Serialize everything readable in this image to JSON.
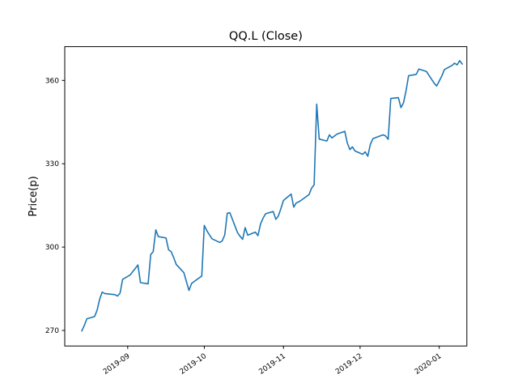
{
  "figure": {
    "title": "QQ.L (Close)",
    "ylabel": "Price(p)"
  },
  "chart_data": {
    "type": "line",
    "title": "QQ.L (Close)",
    "xlabel": "",
    "ylabel": "Price(p)",
    "series_name": "QQ.L Close",
    "line_color": "#1f77b4",
    "grid": false,
    "legend": false,
    "x_tick_labels": [
      "2019-09",
      "2019-10",
      "2019-11",
      "2019-12",
      "2020-01"
    ],
    "x_tick_dates": [
      "2019-09-01",
      "2019-10-01",
      "2019-11-01",
      "2019-12-01",
      "2020-01-01"
    ],
    "y_ticks": [
      270,
      300,
      330,
      360
    ],
    "ylim": [
      264.5,
      372.0
    ],
    "xlim": [
      "2019-08-07",
      "2020-01-14"
    ],
    "dates": [
      "2019-08-14",
      "2019-08-15",
      "2019-08-16",
      "2019-08-19",
      "2019-08-20",
      "2019-08-21",
      "2019-08-22",
      "2019-08-23",
      "2019-08-27",
      "2019-08-28",
      "2019-08-29",
      "2019-08-30",
      "2019-09-02",
      "2019-09-03",
      "2019-09-04",
      "2019-09-05",
      "2019-09-06",
      "2019-09-09",
      "2019-09-10",
      "2019-09-11",
      "2019-09-12",
      "2019-09-13",
      "2019-09-16",
      "2019-09-17",
      "2019-09-18",
      "2019-09-19",
      "2019-09-20",
      "2019-09-23",
      "2019-09-24",
      "2019-09-25",
      "2019-09-26",
      "2019-09-27",
      "2019-09-30",
      "2019-10-01",
      "2019-10-02",
      "2019-10-03",
      "2019-10-04",
      "2019-10-07",
      "2019-10-08",
      "2019-10-09",
      "2019-10-10",
      "2019-10-11",
      "2019-10-14",
      "2019-10-15",
      "2019-10-16",
      "2019-10-17",
      "2019-10-18",
      "2019-10-21",
      "2019-10-22",
      "2019-10-23",
      "2019-10-24",
      "2019-10-25",
      "2019-10-28",
      "2019-10-29",
      "2019-10-30",
      "2019-10-31",
      "2019-11-01",
      "2019-11-04",
      "2019-11-05",
      "2019-11-06",
      "2019-11-07",
      "2019-11-08",
      "2019-11-11",
      "2019-11-12",
      "2019-11-13",
      "2019-11-14",
      "2019-11-15",
      "2019-11-18",
      "2019-11-19",
      "2019-11-20",
      "2019-11-21",
      "2019-11-22",
      "2019-11-25",
      "2019-11-26",
      "2019-11-27",
      "2019-11-28",
      "2019-11-29",
      "2019-12-02",
      "2019-12-03",
      "2019-12-04",
      "2019-12-05",
      "2019-12-06",
      "2019-12-09",
      "2019-12-10",
      "2019-12-11",
      "2019-12-12",
      "2019-12-13",
      "2019-12-16",
      "2019-12-17",
      "2019-12-18",
      "2019-12-19",
      "2019-12-20",
      "2019-12-23",
      "2019-12-24",
      "2019-12-27",
      "2019-12-30",
      "2019-12-31",
      "2020-01-02",
      "2020-01-03",
      "2020-01-06",
      "2020-01-07",
      "2020-01-08",
      "2020-01-09",
      "2020-01-10"
    ],
    "closes": [
      269.8,
      271.8,
      274.2,
      275.0,
      277.2,
      281.2,
      283.8,
      283.3,
      282.9,
      282.4,
      283.4,
      288.4,
      290.0,
      291.2,
      292.4,
      293.6,
      287.2,
      286.8,
      297.3,
      298.4,
      306.2,
      303.8,
      303.3,
      299.0,
      298.4,
      296.2,
      293.8,
      290.8,
      287.5,
      284.4,
      286.9,
      287.6,
      289.6,
      307.8,
      305.9,
      304.4,
      303.0,
      301.7,
      302.2,
      304.4,
      312.2,
      312.4,
      305.2,
      303.9,
      302.8,
      307.0,
      304.3,
      305.4,
      304.1,
      308.3,
      310.4,
      312.0,
      312.8,
      310.0,
      311.2,
      313.9,
      316.8,
      319.1,
      314.4,
      315.9,
      316.3,
      316.9,
      318.9,
      321.2,
      322.4,
      351.5,
      338.9,
      338.2,
      340.4,
      339.3,
      340.0,
      340.7,
      341.7,
      337.5,
      335.1,
      336.1,
      334.6,
      333.4,
      334.3,
      332.7,
      336.9,
      339.0,
      340.1,
      340.4,
      340.0,
      338.8,
      353.5,
      353.8,
      350.2,
      351.9,
      356.3,
      361.7,
      362.2,
      364.1,
      363.2,
      359.0,
      358.0,
      361.6,
      363.9,
      365.4,
      366.2,
      365.6,
      367.1,
      365.9
    ]
  }
}
